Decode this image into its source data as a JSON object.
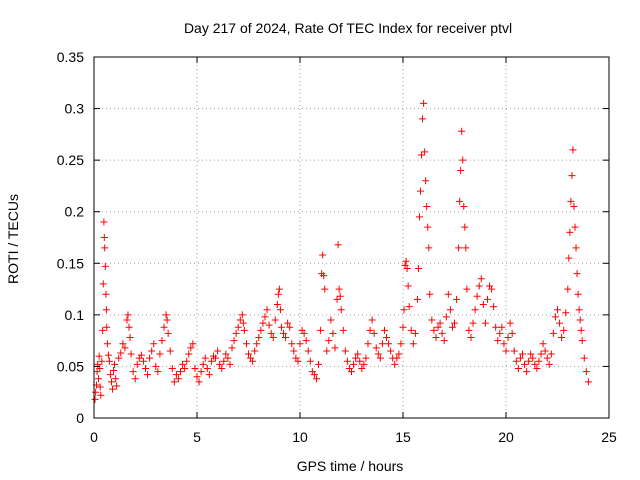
{
  "chart_data": {
    "type": "scatter",
    "title": "Day 217 of 2024, Rate Of TEC Index for receiver ptvl",
    "xlabel": "GPS time / hours",
    "ylabel": "ROTI / TECUs",
    "xlim": [
      0,
      25
    ],
    "ylim": [
      0,
      0.35
    ],
    "x_ticks": [
      0,
      5,
      10,
      15,
      20,
      25
    ],
    "y_ticks": [
      0,
      0.05,
      0.1,
      0.15,
      0.2,
      0.25,
      0.3,
      0.35
    ],
    "x_tick_labels": [
      "0",
      "5",
      "10",
      "15",
      "20",
      "25"
    ],
    "y_tick_labels": [
      "0",
      "0.05",
      "0.1",
      "0.15",
      "0.2",
      "0.25",
      "0.3",
      "0.35"
    ],
    "grid": true,
    "marker": "plus",
    "color": "#ff0000",
    "series": [
      {
        "name": "ROTI",
        "points": [
          [
            0.05,
            0.018
          ],
          [
            0.08,
            0.025
          ],
          [
            0.12,
            0.032
          ],
          [
            0.15,
            0.045
          ],
          [
            0.18,
            0.052
          ],
          [
            0.22,
            0.038
          ],
          [
            0.25,
            0.06
          ],
          [
            0.28,
            0.048
          ],
          [
            0.3,
            0.03
          ],
          [
            0.33,
            0.022
          ],
          [
            0.38,
            0.055
          ],
          [
            0.42,
            0.085
          ],
          [
            0.45,
            0.13
          ],
          [
            0.48,
            0.19
          ],
          [
            0.5,
            0.175
          ],
          [
            0.52,
            0.165
          ],
          [
            0.55,
            0.147
          ],
          [
            0.58,
            0.12
          ],
          [
            0.6,
            0.105
          ],
          [
            0.62,
            0.088
          ],
          [
            0.65,
            0.072
          ],
          [
            0.7,
            0.061
          ],
          [
            0.75,
            0.055
          ],
          [
            0.8,
            0.042
          ],
          [
            0.85,
            0.035
          ],
          [
            0.9,
            0.028
          ],
          [
            0.95,
            0.046
          ],
          [
            1.0,
            0.052
          ],
          [
            1.05,
            0.038
          ],
          [
            1.1,
            0.031
          ],
          [
            1.2,
            0.058
          ],
          [
            1.3,
            0.063
          ],
          [
            1.4,
            0.072
          ],
          [
            1.5,
            0.068
          ],
          [
            1.6,
            0.095
          ],
          [
            1.65,
            0.1
          ],
          [
            1.7,
            0.088
          ],
          [
            1.75,
            0.078
          ],
          [
            1.8,
            0.062
          ],
          [
            1.9,
            0.045
          ],
          [
            2.0,
            0.038
          ],
          [
            2.1,
            0.052
          ],
          [
            2.2,
            0.058
          ],
          [
            2.3,
            0.061
          ],
          [
            2.4,
            0.055
          ],
          [
            2.5,
            0.048
          ],
          [
            2.6,
            0.042
          ],
          [
            2.7,
            0.058
          ],
          [
            2.8,
            0.065
          ],
          [
            2.9,
            0.072
          ],
          [
            3.0,
            0.05
          ],
          [
            3.1,
            0.045
          ],
          [
            3.2,
            0.062
          ],
          [
            3.3,
            0.075
          ],
          [
            3.4,
            0.088
          ],
          [
            3.5,
            0.1
          ],
          [
            3.55,
            0.095
          ],
          [
            3.6,
            0.082
          ],
          [
            3.7,
            0.065
          ],
          [
            3.8,
            0.048
          ],
          [
            3.9,
            0.035
          ],
          [
            4.0,
            0.042
          ],
          [
            4.1,
            0.038
          ],
          [
            4.2,
            0.045
          ],
          [
            4.3,
            0.052
          ],
          [
            4.4,
            0.048
          ],
          [
            4.5,
            0.055
          ],
          [
            4.6,
            0.062
          ],
          [
            4.7,
            0.068
          ],
          [
            4.8,
            0.072
          ],
          [
            4.9,
            0.048
          ],
          [
            5.0,
            0.04
          ],
          [
            5.1,
            0.035
          ],
          [
            5.2,
            0.045
          ],
          [
            5.3,
            0.052
          ],
          [
            5.4,
            0.058
          ],
          [
            5.5,
            0.048
          ],
          [
            5.6,
            0.042
          ],
          [
            5.7,
            0.055
          ],
          [
            5.8,
            0.06
          ],
          [
            5.9,
            0.058
          ],
          [
            6.0,
            0.065
          ],
          [
            6.1,
            0.052
          ],
          [
            6.2,
            0.048
          ],
          [
            6.3,
            0.055
          ],
          [
            6.4,
            0.062
          ],
          [
            6.5,
            0.058
          ],
          [
            6.6,
            0.052
          ],
          [
            6.7,
            0.068
          ],
          [
            6.8,
            0.075
          ],
          [
            6.9,
            0.082
          ],
          [
            7.0,
            0.088
          ],
          [
            7.1,
            0.095
          ],
          [
            7.2,
            0.1
          ],
          [
            7.25,
            0.092
          ],
          [
            7.3,
            0.085
          ],
          [
            7.4,
            0.072
          ],
          [
            7.5,
            0.062
          ],
          [
            7.6,
            0.058
          ],
          [
            7.7,
            0.055
          ],
          [
            7.8,
            0.065
          ],
          [
            7.9,
            0.072
          ],
          [
            8.0,
            0.078
          ],
          [
            8.1,
            0.085
          ],
          [
            8.2,
            0.092
          ],
          [
            8.3,
            0.098
          ],
          [
            8.4,
            0.105
          ],
          [
            8.5,
            0.09
          ],
          [
            8.6,
            0.082
          ],
          [
            8.7,
            0.078
          ],
          [
            8.8,
            0.095
          ],
          [
            8.9,
            0.11
          ],
          [
            8.95,
            0.12
          ],
          [
            9.0,
            0.125
          ],
          [
            9.05,
            0.105
          ],
          [
            9.1,
            0.088
          ],
          [
            9.2,
            0.082
          ],
          [
            9.3,
            0.078
          ],
          [
            9.4,
            0.092
          ],
          [
            9.5,
            0.088
          ],
          [
            9.6,
            0.072
          ],
          [
            9.7,
            0.065
          ],
          [
            9.8,
            0.058
          ],
          [
            9.9,
            0.055
          ],
          [
            10.0,
            0.072
          ],
          [
            10.1,
            0.085
          ],
          [
            10.2,
            0.082
          ],
          [
            10.3,
            0.075
          ],
          [
            10.4,
            0.065
          ],
          [
            10.5,
            0.055
          ],
          [
            10.6,
            0.045
          ],
          [
            10.7,
            0.042
          ],
          [
            10.8,
            0.038
          ],
          [
            10.9,
            0.052
          ],
          [
            11.0,
            0.085
          ],
          [
            11.05,
            0.14
          ],
          [
            11.1,
            0.158
          ],
          [
            11.15,
            0.138
          ],
          [
            11.2,
            0.125
          ],
          [
            11.3,
            0.065
          ],
          [
            11.4,
            0.075
          ],
          [
            11.5,
            0.095
          ],
          [
            11.6,
            0.082
          ],
          [
            11.7,
            0.068
          ],
          [
            11.8,
            0.115
          ],
          [
            11.85,
            0.168
          ],
          [
            11.9,
            0.125
          ],
          [
            11.95,
            0.118
          ],
          [
            12.0,
            0.105
          ],
          [
            12.1,
            0.085
          ],
          [
            12.2,
            0.065
          ],
          [
            12.3,
            0.055
          ],
          [
            12.4,
            0.048
          ],
          [
            12.5,
            0.045
          ],
          [
            12.6,
            0.052
          ],
          [
            12.7,
            0.058
          ],
          [
            12.8,
            0.062
          ],
          [
            12.9,
            0.055
          ],
          [
            13.0,
            0.048
          ],
          [
            13.1,
            0.052
          ],
          [
            13.2,
            0.058
          ],
          [
            13.3,
            0.072
          ],
          [
            13.4,
            0.085
          ],
          [
            13.5,
            0.095
          ],
          [
            13.6,
            0.082
          ],
          [
            13.7,
            0.068
          ],
          [
            13.8,
            0.062
          ],
          [
            13.9,
            0.058
          ],
          [
            14.0,
            0.072
          ],
          [
            14.1,
            0.085
          ],
          [
            14.2,
            0.078
          ],
          [
            14.3,
            0.072
          ],
          [
            14.4,
            0.065
          ],
          [
            14.5,
            0.058
          ],
          [
            14.6,
            0.052
          ],
          [
            14.7,
            0.058
          ],
          [
            14.8,
            0.062
          ],
          [
            14.9,
            0.072
          ],
          [
            15.0,
            0.088
          ],
          [
            15.05,
            0.105
          ],
          [
            15.1,
            0.148
          ],
          [
            15.15,
            0.152
          ],
          [
            15.2,
            0.145
          ],
          [
            15.25,
            0.128
          ],
          [
            15.3,
            0.108
          ],
          [
            15.4,
            0.085
          ],
          [
            15.5,
            0.072
          ],
          [
            15.6,
            0.082
          ],
          [
            15.7,
            0.115
          ],
          [
            15.75,
            0.145
          ],
          [
            15.8,
            0.195
          ],
          [
            15.85,
            0.22
          ],
          [
            15.9,
            0.255
          ],
          [
            15.95,
            0.29
          ],
          [
            16.0,
            0.305
          ],
          [
            16.05,
            0.258
          ],
          [
            16.1,
            0.23
          ],
          [
            16.15,
            0.205
          ],
          [
            16.2,
            0.185
          ],
          [
            16.25,
            0.165
          ],
          [
            16.3,
            0.12
          ],
          [
            16.4,
            0.095
          ],
          [
            16.5,
            0.085
          ],
          [
            16.6,
            0.078
          ],
          [
            16.7,
            0.088
          ],
          [
            16.8,
            0.092
          ],
          [
            16.9,
            0.082
          ],
          [
            17.0,
            0.075
          ],
          [
            17.1,
            0.098
          ],
          [
            17.2,
            0.12
          ],
          [
            17.3,
            0.105
          ],
          [
            17.4,
            0.088
          ],
          [
            17.5,
            0.092
          ],
          [
            17.6,
            0.115
          ],
          [
            17.7,
            0.165
          ],
          [
            17.75,
            0.21
          ],
          [
            17.8,
            0.24
          ],
          [
            17.85,
            0.278
          ],
          [
            17.9,
            0.25
          ],
          [
            17.95,
            0.205
          ],
          [
            18.0,
            0.185
          ],
          [
            18.05,
            0.165
          ],
          [
            18.1,
            0.125
          ],
          [
            18.2,
            0.085
          ],
          [
            18.3,
            0.078
          ],
          [
            18.4,
            0.092
          ],
          [
            18.5,
            0.105
          ],
          [
            18.6,
            0.118
          ],
          [
            18.7,
            0.128
          ],
          [
            18.8,
            0.135
          ],
          [
            18.9,
            0.11
          ],
          [
            19.0,
            0.092
          ],
          [
            19.1,
            0.115
          ],
          [
            19.2,
            0.128
          ],
          [
            19.3,
            0.125
          ],
          [
            19.4,
            0.108
          ],
          [
            19.5,
            0.088
          ],
          [
            19.6,
            0.075
          ],
          [
            19.7,
            0.082
          ],
          [
            19.8,
            0.088
          ],
          [
            19.9,
            0.072
          ],
          [
            20.0,
            0.065
          ],
          [
            20.1,
            0.078
          ],
          [
            20.2,
            0.092
          ],
          [
            20.3,
            0.082
          ],
          [
            20.4,
            0.065
          ],
          [
            20.5,
            0.055
          ],
          [
            20.6,
            0.048
          ],
          [
            20.7,
            0.058
          ],
          [
            20.8,
            0.062
          ],
          [
            20.9,
            0.052
          ],
          [
            21.0,
            0.045
          ],
          [
            21.1,
            0.055
          ],
          [
            21.2,
            0.062
          ],
          [
            21.3,
            0.058
          ],
          [
            21.4,
            0.052
          ],
          [
            21.5,
            0.048
          ],
          [
            21.6,
            0.055
          ],
          [
            21.7,
            0.062
          ],
          [
            21.8,
            0.072
          ],
          [
            21.9,
            0.065
          ],
          [
            22.0,
            0.058
          ],
          [
            22.1,
            0.052
          ],
          [
            22.2,
            0.062
          ],
          [
            22.3,
            0.082
          ],
          [
            22.4,
            0.098
          ],
          [
            22.5,
            0.105
          ],
          [
            22.6,
            0.092
          ],
          [
            22.7,
            0.078
          ],
          [
            22.8,
            0.085
          ],
          [
            22.9,
            0.102
          ],
          [
            23.0,
            0.125
          ],
          [
            23.05,
            0.155
          ],
          [
            23.1,
            0.18
          ],
          [
            23.15,
            0.21
          ],
          [
            23.2,
            0.235
          ],
          [
            23.25,
            0.26
          ],
          [
            23.3,
            0.205
          ],
          [
            23.35,
            0.185
          ],
          [
            23.4,
            0.165
          ],
          [
            23.45,
            0.14
          ],
          [
            23.5,
            0.12
          ],
          [
            23.55,
            0.105
          ],
          [
            23.6,
            0.095
          ],
          [
            23.65,
            0.085
          ],
          [
            23.7,
            0.075
          ],
          [
            23.8,
            0.058
          ],
          [
            23.9,
            0.045
          ],
          [
            24.0,
            0.035
          ]
        ]
      }
    ]
  }
}
